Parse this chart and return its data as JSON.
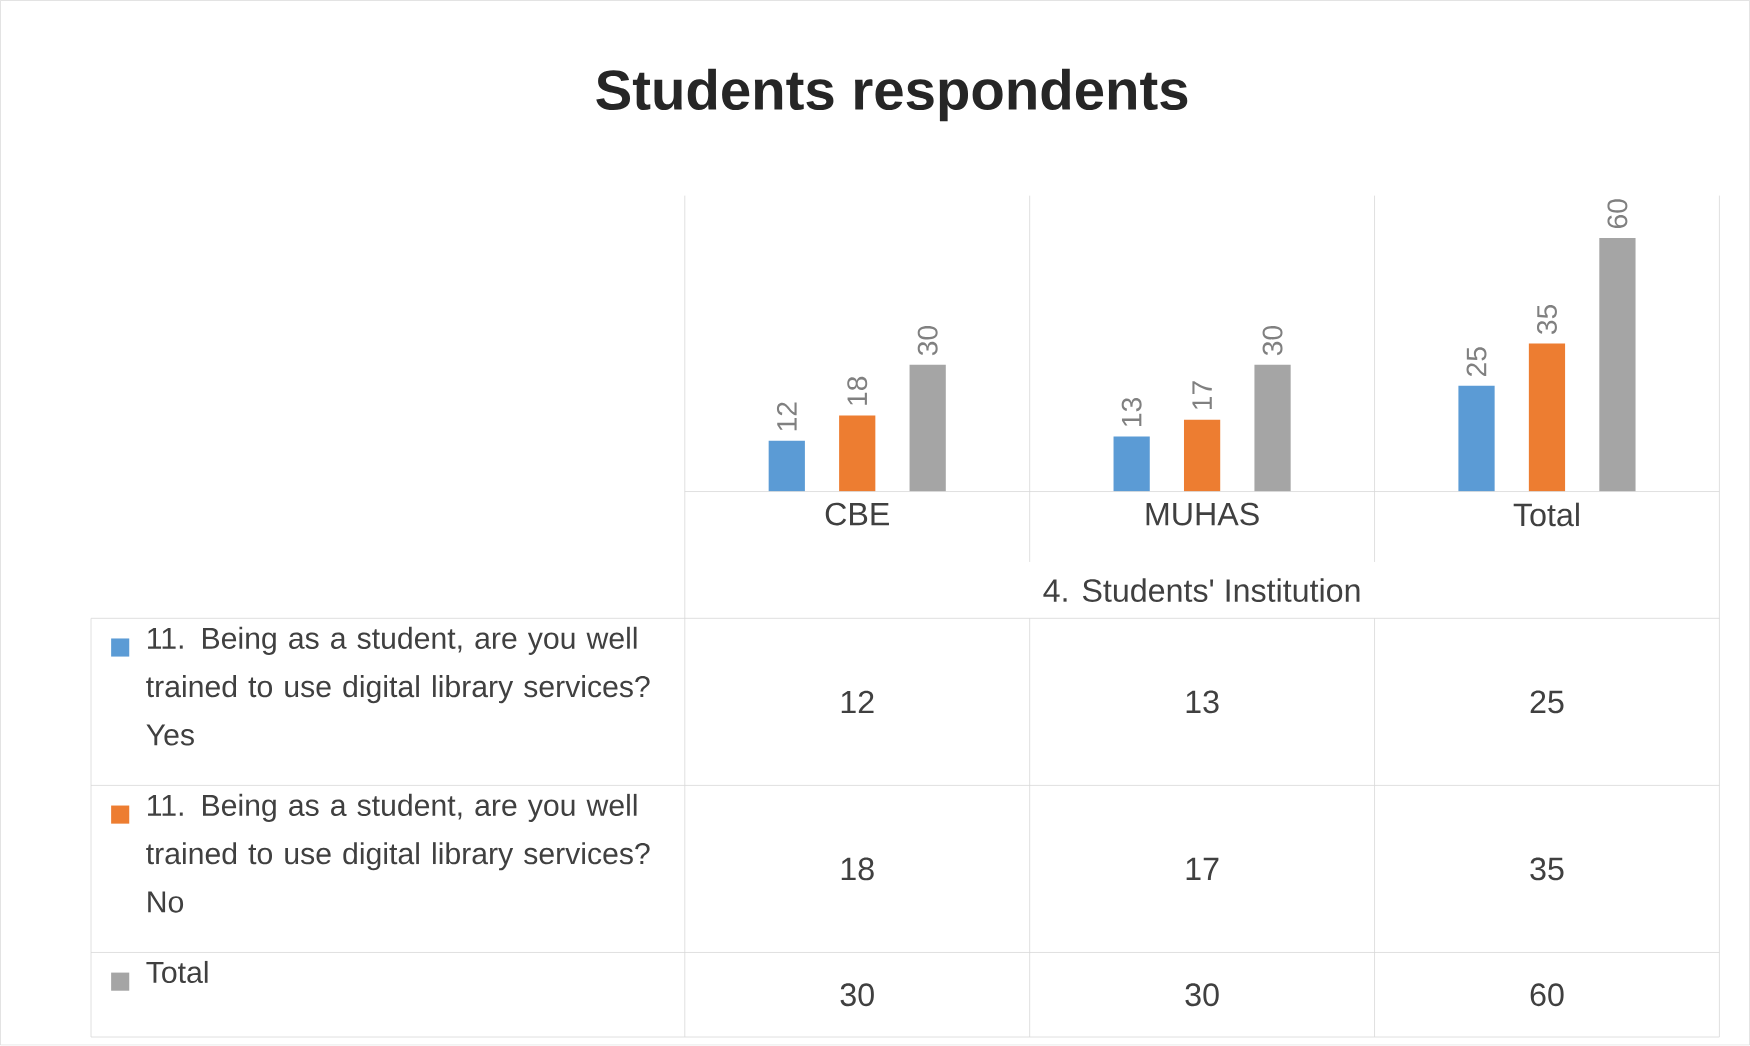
{
  "chart_data": {
    "type": "bar",
    "title": "Students respondents",
    "categories": [
      "CBE",
      "MUHAS",
      "Total"
    ],
    "xlabel": "4. Students' Institution",
    "series": [
      {
        "name": "11. Being as a student, are you well trained to use digital library services? Yes",
        "color": "#5b9bd5",
        "values": [
          12,
          13,
          25
        ],
        "value_labels": [
          "12",
          "13",
          "25"
        ]
      },
      {
        "name": "11. Being as a student, are you well trained to use digital library services? No",
        "color": "#ed7d31",
        "values": [
          18,
          17,
          35
        ],
        "value_labels": [
          "18",
          "17",
          "35"
        ]
      },
      {
        "name": "Total",
        "color": "#a5a5a5",
        "values": [
          30,
          30,
          60
        ],
        "value_labels": [
          "30",
          "30",
          "60"
        ]
      }
    ],
    "data_labels": true,
    "legend": "bottom left"
  }
}
